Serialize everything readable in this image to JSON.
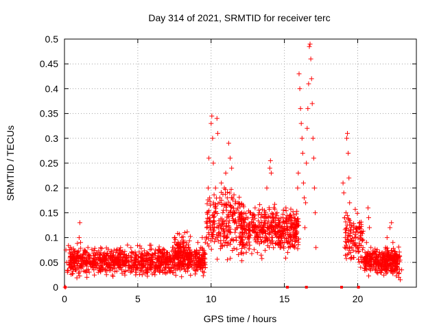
{
  "chart_data": {
    "type": "scatter",
    "title": "Day 314 of 2021, SRMTID for receiver terc",
    "xlabel": "GPS time / hours",
    "ylabel": "SRMTID / TECUs",
    "xlim": [
      0,
      24
    ],
    "ylim": [
      0,
      0.5
    ],
    "xticks": [
      0,
      5,
      10,
      15,
      20
    ],
    "yticks": [
      0,
      0.05,
      0.1,
      0.15,
      0.2,
      0.25,
      0.3,
      0.35,
      0.4,
      0.45,
      0.5
    ],
    "ytick_labels": [
      "0",
      "0.05",
      "0.1",
      "0.15",
      "0.2",
      "0.25",
      "0.3",
      "0.35",
      "0.4",
      "0.45",
      "0.5"
    ],
    "grid": true,
    "marker": "+",
    "color": "#ff0000",
    "series": [
      {
        "name": "SRMTID",
        "points": [
          [
            0.05,
            0.0
          ],
          [
            0.1,
            0.075
          ],
          [
            0.15,
            0.05
          ],
          [
            0.2,
            0.03
          ],
          [
            0.3,
            0.045
          ],
          [
            0.4,
            0.055
          ],
          [
            0.5,
            0.04
          ],
          [
            0.6,
            0.06
          ],
          [
            0.7,
            0.05
          ],
          [
            0.8,
            0.035
          ],
          [
            0.9,
            0.065
          ],
          [
            1.0,
            0.1
          ],
          [
            1.05,
            0.13
          ],
          [
            1.1,
            0.09
          ],
          [
            1.2,
            0.06
          ],
          [
            1.3,
            0.045
          ],
          [
            1.4,
            0.07
          ],
          [
            1.5,
            0.055
          ],
          [
            1.6,
            0.08
          ],
          [
            1.7,
            0.06
          ],
          [
            1.8,
            0.05
          ],
          [
            1.9,
            0.04
          ],
          [
            2.0,
            0.035
          ],
          [
            2.1,
            0.05
          ],
          [
            2.2,
            0.045
          ],
          [
            2.3,
            0.03
          ],
          [
            2.4,
            0.055
          ],
          [
            2.5,
            0.04
          ],
          [
            2.6,
            0.06
          ],
          [
            2.7,
            0.05
          ],
          [
            2.8,
            0.035
          ],
          [
            2.9,
            0.045
          ],
          [
            3.0,
            0.055
          ],
          [
            3.1,
            0.04
          ],
          [
            3.2,
            0.05
          ],
          [
            3.3,
            0.065
          ],
          [
            3.4,
            0.045
          ],
          [
            3.5,
            0.07
          ],
          [
            3.6,
            0.05
          ],
          [
            3.7,
            0.04
          ],
          [
            3.8,
            0.06
          ],
          [
            3.9,
            0.035
          ],
          [
            4.0,
            0.05
          ],
          [
            4.1,
            0.045
          ],
          [
            4.2,
            0.06
          ],
          [
            4.3,
            0.085
          ],
          [
            4.4,
            0.04
          ],
          [
            4.5,
            0.03
          ],
          [
            4.6,
            0.05
          ],
          [
            4.7,
            0.035
          ],
          [
            4.8,
            0.045
          ],
          [
            4.9,
            0.03
          ],
          [
            5.0,
            0.04
          ],
          [
            5.1,
            0.05
          ],
          [
            5.2,
            0.035
          ],
          [
            5.3,
            0.025
          ],
          [
            5.4,
            0.045
          ],
          [
            5.5,
            0.04
          ],
          [
            5.6,
            0.03
          ],
          [
            5.7,
            0.05
          ],
          [
            5.8,
            0.04
          ],
          [
            5.9,
            0.035
          ],
          [
            6.0,
            0.05
          ],
          [
            6.1,
            0.03
          ],
          [
            6.2,
            0.045
          ],
          [
            6.3,
            0.055
          ],
          [
            6.4,
            0.04
          ],
          [
            6.5,
            0.03
          ],
          [
            6.6,
            0.045
          ],
          [
            6.7,
            0.035
          ],
          [
            6.8,
            0.05
          ],
          [
            6.9,
            0.04
          ],
          [
            7.0,
            0.03
          ],
          [
            7.1,
            0.045
          ],
          [
            7.2,
            0.05
          ],
          [
            7.3,
            0.04
          ],
          [
            7.4,
            0.06
          ],
          [
            7.5,
            0.05
          ],
          [
            7.6,
            0.07
          ],
          [
            7.7,
            0.065
          ],
          [
            7.8,
            0.08
          ],
          [
            7.9,
            0.09
          ],
          [
            8.0,
            0.1
          ],
          [
            8.1,
            0.095
          ],
          [
            8.2,
            0.11
          ],
          [
            8.3,
            0.085
          ],
          [
            8.4,
            0.07
          ],
          [
            8.5,
            0.06
          ],
          [
            8.6,
            0.05
          ],
          [
            8.7,
            0.04
          ],
          [
            8.8,
            0.055
          ],
          [
            8.9,
            0.07
          ],
          [
            9.0,
            0.05
          ],
          [
            9.1,
            0.09
          ],
          [
            9.2,
            0.06
          ],
          [
            9.3,
            0.08
          ],
          [
            9.4,
            0.1
          ],
          [
            9.5,
            0.07
          ],
          [
            9.6,
            0.09
          ],
          [
            9.7,
            0.12
          ],
          [
            9.8,
            0.2
          ],
          [
            9.85,
            0.26
          ],
          [
            9.9,
            0.18
          ],
          [
            10.0,
            0.33
          ],
          [
            10.05,
            0.345
          ],
          [
            10.1,
            0.3
          ],
          [
            10.15,
            0.25
          ],
          [
            10.2,
            0.15
          ],
          [
            10.3,
            0.2
          ],
          [
            10.4,
            0.34
          ],
          [
            10.45,
            0.31
          ],
          [
            10.5,
            0.12
          ],
          [
            10.6,
            0.18
          ],
          [
            10.7,
            0.21
          ],
          [
            10.8,
            0.15
          ],
          [
            10.9,
            0.2
          ],
          [
            11.0,
            0.23
          ],
          [
            11.1,
            0.18
          ],
          [
            11.2,
            0.29
          ],
          [
            11.3,
            0.26
          ],
          [
            11.4,
            0.24
          ],
          [
            11.5,
            0.15
          ],
          [
            11.6,
            0.13
          ],
          [
            11.7,
            0.1
          ],
          [
            11.8,
            0.12
          ],
          [
            11.9,
            0.14
          ],
          [
            12.0,
            0.09
          ],
          [
            12.1,
            0.11
          ],
          [
            12.2,
            0.13
          ],
          [
            12.3,
            0.08
          ],
          [
            12.4,
            0.07
          ],
          [
            12.5,
            0.1
          ],
          [
            12.6,
            0.12
          ],
          [
            12.7,
            0.15
          ],
          [
            12.8,
            0.14
          ],
          [
            12.9,
            0.13
          ],
          [
            13.0,
            0.16
          ],
          [
            13.1,
            0.12
          ],
          [
            13.2,
            0.1
          ],
          [
            13.3,
            0.15
          ],
          [
            13.4,
            0.14
          ],
          [
            13.5,
            0.11
          ],
          [
            13.6,
            0.09
          ],
          [
            13.7,
            0.13
          ],
          [
            13.8,
            0.2
          ],
          [
            13.9,
            0.14
          ],
          [
            14.0,
            0.24
          ],
          [
            14.05,
            0.255
          ],
          [
            14.1,
            0.23
          ],
          [
            14.2,
            0.1
          ],
          [
            14.3,
            0.12
          ],
          [
            14.4,
            0.14
          ],
          [
            14.5,
            0.15
          ],
          [
            14.6,
            0.11
          ],
          [
            14.7,
            0.08
          ],
          [
            14.8,
            0.12
          ],
          [
            14.9,
            0.14
          ],
          [
            15.0,
            0.13
          ],
          [
            15.1,
            0.16
          ],
          [
            15.2,
            0.11
          ],
          [
            15.3,
            0.09
          ],
          [
            15.4,
            0.12
          ],
          [
            15.5,
            0.14
          ],
          [
            15.6,
            0.1
          ],
          [
            15.7,
            0.08
          ],
          [
            15.8,
            0.11
          ],
          [
            15.9,
            0.2
          ],
          [
            15.95,
            0.23
          ],
          [
            16.0,
            0.43
          ],
          [
            16.05,
            0.4
          ],
          [
            16.1,
            0.36
          ],
          [
            16.15,
            0.33
          ],
          [
            16.2,
            0.3
          ],
          [
            16.25,
            0.27
          ],
          [
            16.3,
            0.21
          ],
          [
            16.35,
            0.18
          ],
          [
            16.4,
            0.12
          ],
          [
            16.45,
            0.17
          ],
          [
            16.5,
            0.25
          ],
          [
            16.55,
            0.32
          ],
          [
            16.6,
            0.36
          ],
          [
            16.65,
            0.41
          ],
          [
            16.7,
            0.485
          ],
          [
            16.75,
            0.49
          ],
          [
            16.8,
            0.46
          ],
          [
            16.85,
            0.42
          ],
          [
            16.9,
            0.37
          ],
          [
            16.95,
            0.3
          ],
          [
            17.0,
            0.26
          ],
          [
            17.05,
            0.2
          ],
          [
            17.1,
            0.15
          ],
          [
            17.15,
            0.08
          ],
          [
            19.0,
            0.21
          ],
          [
            19.05,
            0.19
          ],
          [
            19.1,
            0.14
          ],
          [
            19.15,
            0.1
          ],
          [
            19.2,
            0.15
          ],
          [
            19.25,
            0.3
          ],
          [
            19.3,
            0.31
          ],
          [
            19.35,
            0.27
          ],
          [
            19.4,
            0.22
          ],
          [
            19.45,
            0.17
          ],
          [
            19.5,
            0.13
          ],
          [
            19.6,
            0.08
          ],
          [
            19.7,
            0.06
          ],
          [
            19.8,
            0.09
          ],
          [
            19.9,
            0.12
          ],
          [
            20.0,
            0.08
          ],
          [
            20.1,
            0.05
          ],
          [
            20.2,
            0.04
          ],
          [
            20.3,
            0.06
          ],
          [
            20.4,
            0.05
          ],
          [
            20.5,
            0.07
          ],
          [
            20.6,
            0.09
          ],
          [
            20.7,
            0.16
          ],
          [
            20.75,
            0.14
          ],
          [
            20.8,
            0.12
          ],
          [
            20.9,
            0.08
          ],
          [
            21.0,
            0.06
          ],
          [
            21.1,
            0.04
          ],
          [
            21.2,
            0.05
          ],
          [
            21.3,
            0.03
          ],
          [
            21.4,
            0.05
          ],
          [
            21.5,
            0.07
          ],
          [
            21.6,
            0.04
          ],
          [
            21.7,
            0.06
          ],
          [
            21.8,
            0.05
          ],
          [
            21.9,
            0.08
          ],
          [
            22.0,
            0.1
          ],
          [
            22.1,
            0.07
          ],
          [
            22.2,
            0.12
          ],
          [
            22.3,
            0.13
          ],
          [
            22.4,
            0.09
          ],
          [
            22.5,
            0.06
          ],
          [
            22.6,
            0.05
          ],
          [
            22.7,
            0.03
          ],
          [
            22.8,
            0.02
          ],
          [
            22.9,
            0.015
          ],
          [
            23.0,
            0.035
          ]
        ]
      }
    ],
    "zero_markers_x": [
      0.05,
      15.2,
      16.5,
      18.9,
      20.05
    ],
    "bands": [
      {
        "x0": 0.2,
        "x1": 9.6,
        "ymin": 0.015,
        "ymax": 0.09,
        "count": 900,
        "seed": 11
      },
      {
        "x0": 7.5,
        "x1": 8.6,
        "ymin": 0.03,
        "ymax": 0.12,
        "count": 80,
        "seed": 12
      },
      {
        "x0": 9.6,
        "x1": 12.2,
        "ymin": 0.04,
        "ymax": 0.22,
        "count": 230,
        "seed": 13
      },
      {
        "x0": 12.0,
        "x1": 16.0,
        "ymin": 0.05,
        "ymax": 0.18,
        "count": 420,
        "seed": 14
      },
      {
        "x0": 19.1,
        "x1": 20.4,
        "ymin": 0.03,
        "ymax": 0.17,
        "count": 110,
        "seed": 15
      },
      {
        "x0": 20.4,
        "x1": 22.9,
        "ymin": 0.015,
        "ymax": 0.09,
        "count": 330,
        "seed": 16
      }
    ]
  }
}
